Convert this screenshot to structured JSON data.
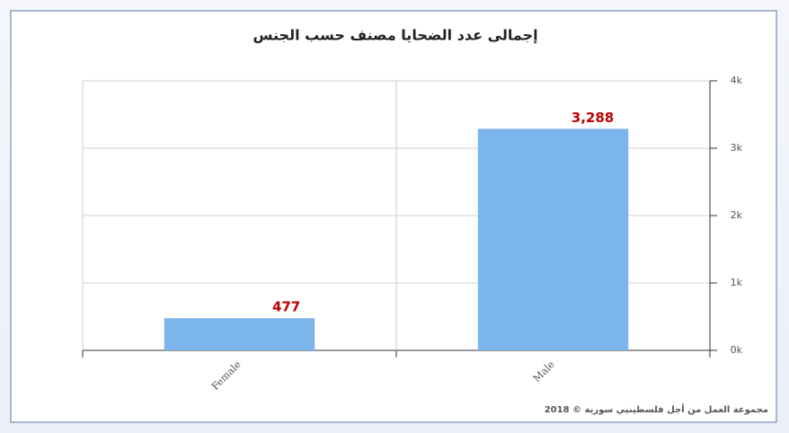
{
  "chart_data": {
    "type": "bar",
    "title": "إجمالى عدد الضحايا مصنف حسب الجنس",
    "categories": [
      "Female",
      "Male"
    ],
    "values": [
      477,
      3288
    ],
    "value_labels": [
      "477",
      "3,288"
    ],
    "color": "#7cb5ec",
    "value_label_color": "#c00000",
    "ylim": [
      0,
      4000
    ],
    "yticks": [
      {
        "value": 0,
        "label": "0k"
      },
      {
        "value": 1000,
        "label": "1k"
      },
      {
        "value": 2000,
        "label": "2k"
      },
      {
        "value": 3000,
        "label": "3k"
      },
      {
        "value": 4000,
        "label": "4k"
      }
    ],
    "grid": true,
    "y_axis_side": "right",
    "credit": "مجموعة العمل من أجل فلسطينيي سورية © 2018"
  }
}
